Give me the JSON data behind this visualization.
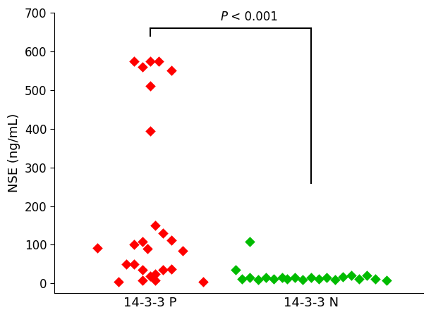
{
  "group1_label": "14-3-3 P",
  "group2_label": "14-3-3 N",
  "group1_points": [
    [
      0.82,
      92
    ],
    [
      0.95,
      5
    ],
    [
      1.0,
      50
    ],
    [
      1.05,
      50
    ],
    [
      1.05,
      575
    ],
    [
      1.1,
      560
    ],
    [
      1.15,
      575
    ],
    [
      1.2,
      575
    ],
    [
      1.28,
      550
    ],
    [
      1.15,
      510
    ],
    [
      1.15,
      395
    ],
    [
      1.05,
      100
    ],
    [
      1.1,
      108
    ],
    [
      1.13,
      90
    ],
    [
      1.18,
      150
    ],
    [
      1.23,
      130
    ],
    [
      1.28,
      112
    ],
    [
      1.1,
      35
    ],
    [
      1.15,
      18
    ],
    [
      1.18,
      25
    ],
    [
      1.23,
      35
    ],
    [
      1.28,
      37
    ],
    [
      1.35,
      85
    ],
    [
      1.48,
      5
    ],
    [
      1.1,
      7
    ],
    [
      1.18,
      7
    ]
  ],
  "group2_points": [
    [
      1.68,
      35
    ],
    [
      1.72,
      12
    ],
    [
      1.77,
      15
    ],
    [
      1.82,
      10
    ],
    [
      1.87,
      15
    ],
    [
      1.92,
      12
    ],
    [
      1.97,
      15
    ],
    [
      2.0,
      12
    ],
    [
      2.05,
      15
    ],
    [
      2.1,
      10
    ],
    [
      2.15,
      15
    ],
    [
      2.2,
      12
    ],
    [
      2.25,
      15
    ],
    [
      2.3,
      10
    ],
    [
      2.35,
      17
    ],
    [
      2.4,
      20
    ],
    [
      2.45,
      12
    ],
    [
      2.5,
      20
    ],
    [
      2.55,
      12
    ],
    [
      1.77,
      108
    ],
    [
      2.62,
      7
    ]
  ],
  "color_group1": "#ff0000",
  "color_group2": "#00bb00",
  "ylabel": "NSE (ng/mL)",
  "ylim": [
    -25,
    700
  ],
  "yticks": [
    0,
    100,
    200,
    300,
    400,
    500,
    600,
    700
  ],
  "xlim": [
    0.55,
    2.85
  ],
  "xtick_pos": [
    1.15,
    2.15
  ],
  "significance_text": "< 0.001",
  "sig_p_text": "P",
  "sig_line_x1": 1.15,
  "sig_line_x2": 2.15,
  "sig_line_y": 660,
  "sig_drop_y1": 640,
  "sig_drop_y2": 260,
  "marker_size": 55
}
